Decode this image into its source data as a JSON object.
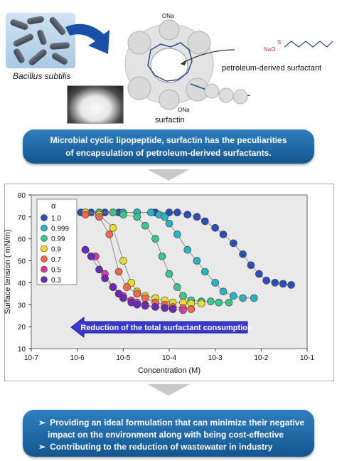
{
  "top": {
    "bacteria_label": "Bacillus subtilis",
    "surfactin_label": "surfactin",
    "petroleum_label": "petroleum-derived surfactant",
    "ona_top": "ONa",
    "ona_bottom": "ONa",
    "nao_label": "NaO"
  },
  "banner1": {
    "line1": "Microbial cyclic lipopeptide, surfactin has the peculiarities",
    "line2": "of encapsulation of petroleum-derived surfactants."
  },
  "banner2": {
    "items": [
      "Providing an ideal formulation that can minimize their negative",
      "impact on the environment along with being cost-effective",
      "Contributing to the reduction of wastewater in industry"
    ]
  },
  "colors": {
    "banner": "#1f6aaa",
    "arrow": "#1a4fa8",
    "reduction_arrow": "#3a3ad0"
  },
  "chart_data": {
    "type": "scatter",
    "xlabel": "Concentration (M)",
    "ylabel": "Surface tension ( mN/m)",
    "xscale": "log",
    "xlim": [
      1e-07,
      0.1
    ],
    "ylim": [
      10,
      80
    ],
    "x_tick_labels": [
      "10-7",
      "10-6",
      "10-5",
      "10-4",
      "10-3",
      "10-2",
      "10-1"
    ],
    "y_ticks": [
      10,
      20,
      30,
      40,
      50,
      60,
      70,
      80
    ],
    "legend_title": "α",
    "annotation": "Reduction of the total surfactant consumption",
    "series": [
      {
        "name": "1.0",
        "color": "#2a4fb8",
        "x": [
          1.2e-06,
          2e-06,
          4e-06,
          8e-06,
          2e-05,
          5e-05,
          0.0001,
          0.00015,
          0.00025,
          0.0004,
          0.0006,
          0.001,
          0.0015,
          0.0025,
          0.004,
          0.006,
          0.009,
          0.013,
          0.02,
          0.03,
          0.045
        ],
        "y": [
          72,
          72,
          72,
          72,
          72,
          72,
          72,
          72,
          71,
          70,
          68,
          65,
          62,
          58,
          53,
          48,
          44,
          41,
          40,
          39.5,
          39
        ]
      },
      {
        "name": "0.999",
        "color": "#2bb3c4",
        "x": [
          1.5e-06,
          3e-06,
          6e-06,
          1e-05,
          2e-05,
          4e-05,
          6e-05,
          8e-05,
          0.0001,
          0.00015,
          0.00025,
          0.0004,
          0.0006,
          0.001,
          0.0015,
          0.0025,
          0.004,
          0.007
        ],
        "y": [
          72,
          72,
          72,
          72,
          72,
          72,
          71,
          70,
          67,
          62,
          55,
          50,
          45,
          40,
          36,
          34,
          33,
          33
        ]
      },
      {
        "name": "0.99",
        "color": "#3cc48a",
        "x": [
          1.5e-06,
          3e-06,
          6e-06,
          1e-05,
          2e-05,
          3e-05,
          5e-05,
          7e-05,
          0.0001,
          0.00015,
          0.0002,
          0.0003,
          0.0005,
          0.0008,
          0.0012,
          0.002
        ],
        "y": [
          72,
          72,
          72,
          71,
          70,
          66,
          60,
          52,
          44,
          38,
          34,
          32,
          31.5,
          31.5,
          31,
          31
        ]
      },
      {
        "name": "0.9",
        "color": "#e8dd2a",
        "x": [
          1.5e-06,
          3e-06,
          6e-06,
          1e-05,
          1.5e-05,
          2e-05,
          3e-05,
          5e-05,
          8e-05,
          0.00012,
          0.0002,
          0.0003,
          0.0005
        ],
        "y": [
          72,
          71,
          65,
          50,
          40,
          36,
          34,
          33,
          32,
          31,
          31,
          30.5,
          30.5
        ]
      },
      {
        "name": "0.7",
        "color": "#f06a4a",
        "x": [
          1.5e-06,
          3e-06,
          5e-06,
          8e-06,
          1.2e-05,
          2e-05,
          3e-05,
          5e-05,
          8e-05,
          0.00012,
          0.0002,
          0.0003
        ],
        "y": [
          71,
          70,
          62,
          45,
          38,
          35,
          33,
          31,
          30,
          29,
          28.5,
          28
        ]
      },
      {
        "name": "0.5",
        "color": "#d63c9e",
        "x": [
          1.5e-06,
          2.5e-06,
          4e-06,
          6e-06,
          1e-05,
          1.5e-05,
          2e-05,
          3e-05,
          5e-05,
          8e-05,
          0.00012,
          0.0002
        ],
        "y": [
          55,
          52,
          44,
          38,
          34,
          32,
          31,
          30,
          29,
          28.5,
          28,
          27.5
        ]
      },
      {
        "name": "0.3",
        "color": "#6a2bb8",
        "x": [
          1.5e-06,
          2e-06,
          3e-06,
          4e-06,
          6e-06,
          8e-06,
          1e-05,
          1.5e-05,
          2e-05,
          3e-05,
          5e-05,
          8e-05,
          0.00012
        ],
        "y": [
          55,
          52,
          46,
          42,
          38,
          35,
          33,
          31,
          30,
          29.5,
          29,
          28.5,
          28
        ]
      }
    ]
  }
}
